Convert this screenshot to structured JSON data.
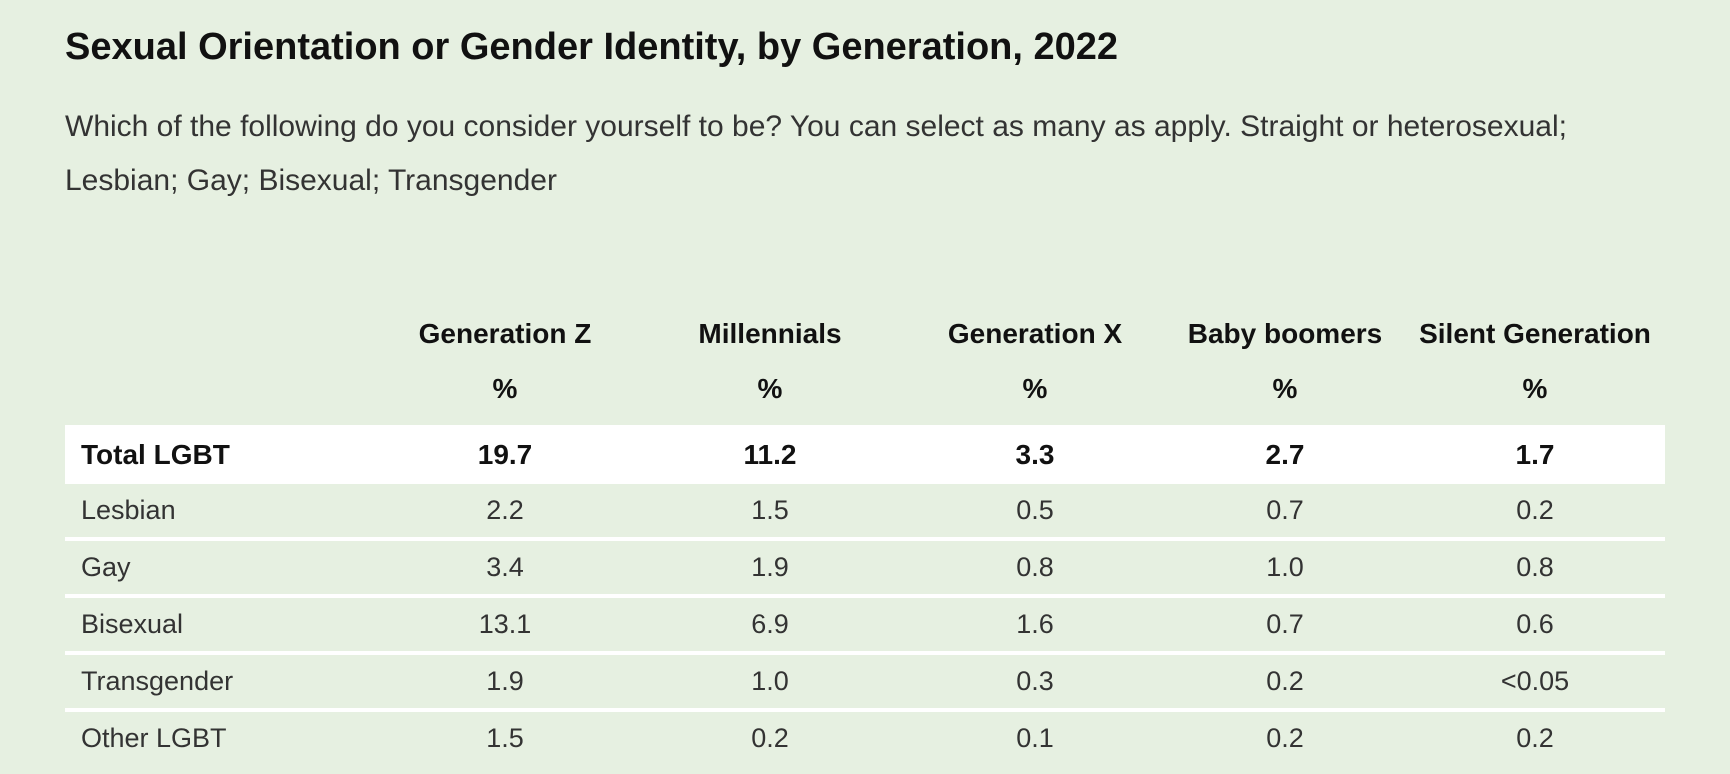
{
  "chart_data": {
    "type": "table",
    "title": "Sexual Orientation or Gender Identity, by Generation, 2022",
    "subtitle": "Which of the following do you consider yourself to be? You can select as many as apply. Straight or heterosexual; Lesbian; Gay; Bisexual; Transgender",
    "columns": [
      {
        "label": "Generation Z",
        "unit": "%"
      },
      {
        "label": "Millennials",
        "unit": "%"
      },
      {
        "label": "Generation X",
        "unit": "%"
      },
      {
        "label": "Baby boomers",
        "unit": "%"
      },
      {
        "label": "Silent Generation",
        "unit": "%"
      }
    ],
    "rows": [
      {
        "label": "Total LGBT",
        "values": [
          "19.7",
          "11.2",
          "3.3",
          "2.7",
          "1.7"
        ]
      },
      {
        "label": "Lesbian",
        "values": [
          "2.2",
          "1.5",
          "0.5",
          "0.7",
          "0.2"
        ]
      },
      {
        "label": "Gay",
        "values": [
          "3.4",
          "1.9",
          "0.8",
          "1.0",
          "0.8"
        ]
      },
      {
        "label": "Bisexual",
        "values": [
          "13.1",
          "6.9",
          "1.6",
          "0.7",
          "0.6"
        ]
      },
      {
        "label": "Transgender",
        "values": [
          "1.9",
          "1.0",
          "0.3",
          "0.2",
          "<0.05"
        ]
      },
      {
        "label": "Other LGBT",
        "values": [
          "1.5",
          "0.2",
          "0.1",
          "0.2",
          "0.2"
        ]
      }
    ]
  },
  "colors": {
    "background": "#e6f0e1",
    "highlight_row": "#ffffff",
    "row_separator": "#ffffff"
  }
}
